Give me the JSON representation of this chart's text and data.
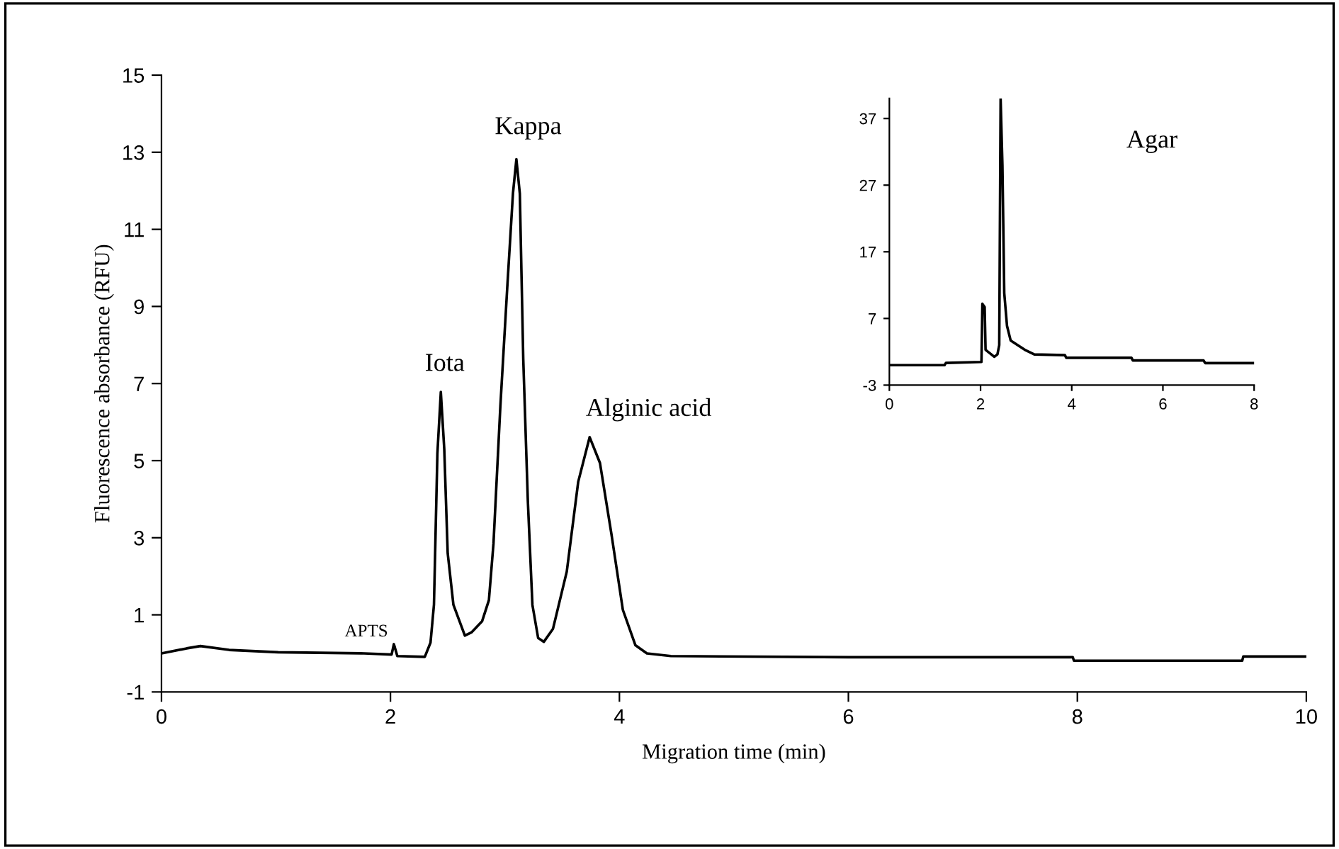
{
  "chart_data": [
    {
      "type": "line",
      "xlabel": "Migration time (min)",
      "ylabel": "Fluorescence absorbance (RFU)",
      "xlim": [
        0,
        10
      ],
      "ylim": [
        -1,
        15
      ],
      "xticks": [
        0,
        2,
        4,
        6,
        8,
        10
      ],
      "yticks": [
        -1,
        1,
        3,
        5,
        7,
        9,
        11,
        13,
        15
      ],
      "grid": false,
      "legend": false,
      "marker": "none",
      "line_style": "solid",
      "series": [
        {
          "color": "#000000",
          "x": [
            0,
            0.22,
            0.34,
            0.59,
            1.02,
            1.77,
            2.01,
            2.03,
            2.06,
            2.3,
            2.35,
            2.38,
            2.41,
            2.44,
            2.47,
            2.5,
            2.55,
            2.65,
            2.71,
            2.8,
            2.86,
            2.9,
            2.96,
            3.02,
            3.07,
            3.1,
            3.13,
            3.16,
            3.2,
            3.24,
            3.29,
            3.34,
            3.42,
            3.54,
            3.64,
            3.74,
            3.83,
            3.93,
            4.03,
            4.14,
            4.24,
            4.45,
            6.0,
            7.96,
            7.97,
            9.44,
            9.45,
            10
          ],
          "values": [
            0.0,
            0.13,
            0.19,
            0.09,
            0.03,
            0.0,
            -0.03,
            0.24,
            -0.07,
            -0.09,
            0.28,
            1.26,
            5.18,
            6.78,
            5.3,
            2.6,
            1.26,
            0.46,
            0.55,
            0.83,
            1.38,
            2.85,
            6.41,
            9.48,
            11.93,
            12.82,
            11.93,
            7.64,
            3.96,
            1.26,
            0.4,
            0.3,
            0.64,
            2.12,
            4.45,
            5.61,
            4.94,
            3.1,
            1.13,
            0.21,
            0.0,
            -0.07,
            -0.1,
            -0.1,
            -0.19,
            -0.19,
            -0.08,
            -0.08
          ]
        }
      ],
      "annotations": [
        {
          "text": "APTS",
          "x": 2.03,
          "y": 0.24
        },
        {
          "text": "Iota",
          "x": 2.44,
          "y": 6.78
        },
        {
          "text": "Kappa",
          "x": 3.1,
          "y": 12.82
        },
        {
          "text": "Alginic acid",
          "x": 3.74,
          "y": 5.61
        }
      ]
    },
    {
      "type": "line",
      "xlim": [
        0,
        8
      ],
      "ylim": [
        -3,
        40
      ],
      "xticks": [
        0,
        2,
        4,
        6,
        8
      ],
      "yticks": [
        -3,
        7,
        17,
        27,
        37
      ],
      "grid": false,
      "legend": false,
      "marker": "none",
      "line_style": "solid",
      "series": [
        {
          "color": "#000000",
          "x": [
            0,
            1.21,
            1.24,
            2.02,
            2.04,
            2.09,
            2.11,
            2.3,
            2.37,
            2.41,
            2.44,
            2.48,
            2.52,
            2.58,
            2.66,
            2.97,
            3.18,
            3.85,
            3.88,
            5.31,
            5.34,
            6.89,
            6.93,
            8.0
          ],
          "values": [
            0,
            0,
            0.33,
            0.47,
            9.2,
            8.7,
            2.3,
            1.25,
            1.6,
            3.0,
            40,
            30,
            10.8,
            5.9,
            3.7,
            2.3,
            1.6,
            1.5,
            1.1,
            1.1,
            0.7,
            0.7,
            0.3,
            0.3
          ]
        }
      ],
      "annotations": [
        "Agar"
      ]
    }
  ]
}
